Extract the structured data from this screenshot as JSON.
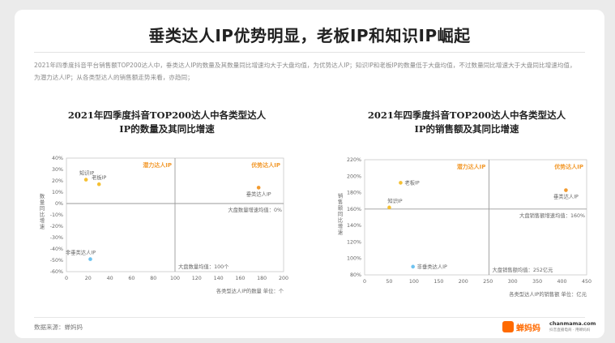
{
  "page": {
    "title": "垂类达人IP优势明显，老板IP和知识IP崛起",
    "description": "2021年四季度抖音平台销售额TOP200达人中，垂类达人IP的数量及其数量同比增速均大于大盘均值，为优势达人IP；知识IP和老板IP的数量低于大盘均值，不过数量同比增速大于大盘同比增速均值，为潜力达人IP；从各类型达人的销售额走势来看，亦趋同；",
    "source": "数据来源：蝉妈妈",
    "brand": {
      "name": "蝉妈妈",
      "domain": "chanmama.com",
      "tagline": "抖音直播电商 · 用蝉妈妈"
    }
  },
  "colors": {
    "accent": "#f29a2e",
    "nonvertical": "#6ec3f0",
    "axis": "#c8c8c8",
    "text": "#666666"
  },
  "chart_data": [
    {
      "type": "scatter",
      "title_line1": "2021年四季度抖音TOP200达人中各类型达人",
      "title_line2": "IP的数量及其同比增速",
      "xlabel": "各类型达人IP的数量  单位：个",
      "ylabel": "数量同比增速",
      "xlim": [
        0,
        200
      ],
      "ylim": [
        -0.6,
        0.4
      ],
      "x_ticks": [
        "0",
        "20",
        "40",
        "60",
        "80",
        "100",
        "120",
        "140",
        "160",
        "180",
        "200"
      ],
      "y_ticks": [
        "40%",
        "30%",
        "20%",
        "10%",
        "0%",
        "-10%",
        "-20%",
        "-30%",
        "-40%",
        "-50%",
        "-60%"
      ],
      "ref_x": 100,
      "ref_y": 0,
      "ref_x_label": "大盘数量均值：100个",
      "ref_y_label": "大盘数量增速均值：0%",
      "quadrant_labels": {
        "top_left": "潜力达人IP",
        "top_right": "优势达人IP"
      },
      "points": [
        {
          "name": "知识IP",
          "x": 18,
          "y": 0.21,
          "color": "#f5c033"
        },
        {
          "name": "老板IP",
          "x": 30,
          "y": 0.17,
          "color": "#f5c033"
        },
        {
          "name": "垂类达人IP",
          "x": 177,
          "y": 0.14,
          "color": "#f29a2e"
        },
        {
          "name": "非垂类达人IP",
          "x": 22,
          "y": -0.49,
          "color": "#6ec3f0"
        }
      ]
    },
    {
      "type": "scatter",
      "title_line1": "2021年四季度抖音TOP200达人中各类型达人",
      "title_line2": "IP的销售额及其同比增速",
      "xlabel": "各类型达人IP的销售额  单位：亿元",
      "ylabel": "销售额同比增速",
      "xlim": [
        0,
        450
      ],
      "ylim": [
        0.8,
        2.2
      ],
      "x_ticks": [
        "0",
        "50",
        "100",
        "150",
        "200",
        "250",
        "300",
        "350",
        "400",
        "450"
      ],
      "y_ticks": [
        "220%",
        "200%",
        "180%",
        "160%",
        "140%",
        "120%",
        "100%",
        "80%"
      ],
      "ref_x": 252,
      "ref_y": 1.6,
      "ref_x_label": "大盘销售额均值：252亿元",
      "ref_y_label": "大盘销售额增速均值：160%",
      "quadrant_labels": {
        "top_left": "潜力达人IP",
        "top_right": "优势达人IP"
      },
      "points": [
        {
          "name": "老板IP",
          "x": 73,
          "y": 1.92,
          "color": "#f5c033"
        },
        {
          "name": "知识IP",
          "x": 50,
          "y": 1.62,
          "color": "#f5c033"
        },
        {
          "name": "垂类达人IP",
          "x": 408,
          "y": 1.83,
          "color": "#f29a2e"
        },
        {
          "name": "非垂类达人IP",
          "x": 98,
          "y": 0.9,
          "color": "#6ec3f0"
        }
      ]
    }
  ]
}
